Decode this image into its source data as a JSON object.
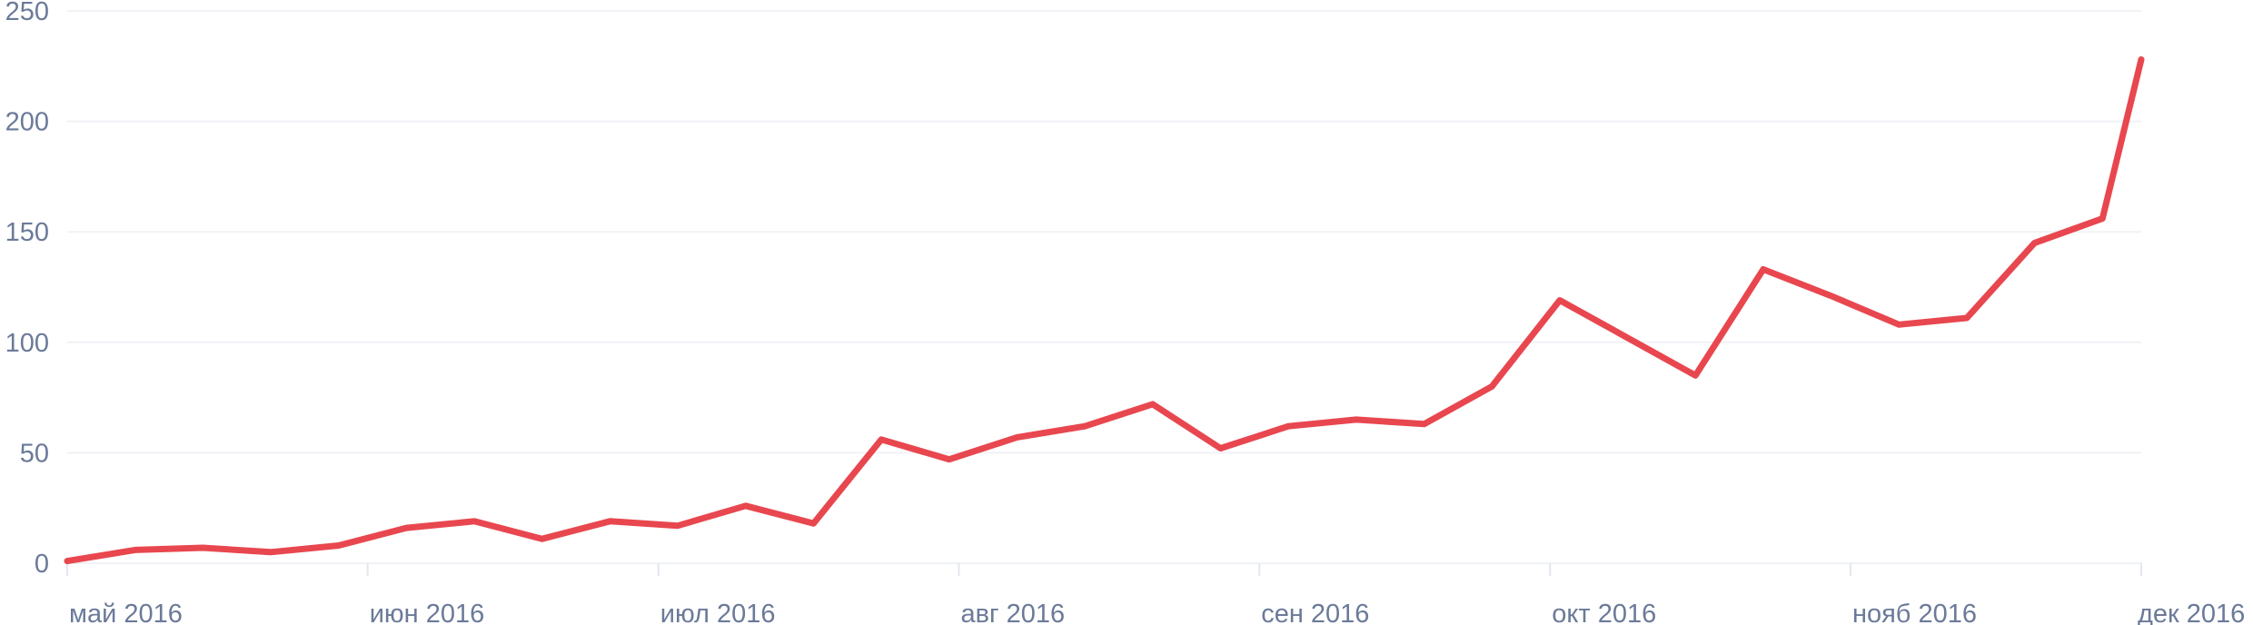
{
  "chart_data": {
    "type": "line",
    "title": "",
    "xlabel": "",
    "ylabel": "",
    "ylim": [
      0,
      250
    ],
    "y_ticks": [
      0,
      50,
      100,
      150,
      200,
      250
    ],
    "x_range": [
      "2016-05-01",
      "2016-12-01"
    ],
    "x_ticks": [
      {
        "date": "2016-05-01",
        "label": "май 2016"
      },
      {
        "date": "2016-06-01",
        "label": "июн 2016"
      },
      {
        "date": "2016-07-01",
        "label": "июл 2016"
      },
      {
        "date": "2016-08-01",
        "label": "авг 2016"
      },
      {
        "date": "2016-09-01",
        "label": "сен 2016"
      },
      {
        "date": "2016-10-01",
        "label": "окт 2016"
      },
      {
        "date": "2016-11-01",
        "label": "нояб 2016"
      },
      {
        "date": "2016-12-01",
        "label": "дек 2016"
      }
    ],
    "grid": true,
    "legend": "none",
    "colors": {
      "line": "#e8474f",
      "grid": "#f0f2f6",
      "tick_label": "#6b7a99"
    },
    "series": [
      {
        "points": [
          {
            "x": "2016-05-01",
            "y": 1
          },
          {
            "x": "2016-05-08",
            "y": 6
          },
          {
            "x": "2016-05-15",
            "y": 7
          },
          {
            "x": "2016-05-22",
            "y": 5
          },
          {
            "x": "2016-05-29",
            "y": 8
          },
          {
            "x": "2016-06-05",
            "y": 16
          },
          {
            "x": "2016-06-12",
            "y": 19
          },
          {
            "x": "2016-06-19",
            "y": 11
          },
          {
            "x": "2016-06-26",
            "y": 19
          },
          {
            "x": "2016-07-03",
            "y": 17
          },
          {
            "x": "2016-07-10",
            "y": 26
          },
          {
            "x": "2016-07-17",
            "y": 18
          },
          {
            "x": "2016-07-24",
            "y": 56
          },
          {
            "x": "2016-07-31",
            "y": 47
          },
          {
            "x": "2016-08-07",
            "y": 57
          },
          {
            "x": "2016-08-14",
            "y": 62
          },
          {
            "x": "2016-08-21",
            "y": 72
          },
          {
            "x": "2016-08-28",
            "y": 52
          },
          {
            "x": "2016-09-04",
            "y": 62
          },
          {
            "x": "2016-09-11",
            "y": 65
          },
          {
            "x": "2016-09-18",
            "y": 63
          },
          {
            "x": "2016-09-25",
            "y": 80
          },
          {
            "x": "2016-10-02",
            "y": 119
          },
          {
            "x": "2016-10-09",
            "y": 102
          },
          {
            "x": "2016-10-16",
            "y": 85
          },
          {
            "x": "2016-10-23",
            "y": 133
          },
          {
            "x": "2016-10-30",
            "y": 121
          },
          {
            "x": "2016-11-06",
            "y": 108
          },
          {
            "x": "2016-11-13",
            "y": 111
          },
          {
            "x": "2016-11-20",
            "y": 145
          },
          {
            "x": "2016-11-27",
            "y": 156
          },
          {
            "x": "2016-12-01",
            "y": 228
          }
        ]
      }
    ]
  }
}
